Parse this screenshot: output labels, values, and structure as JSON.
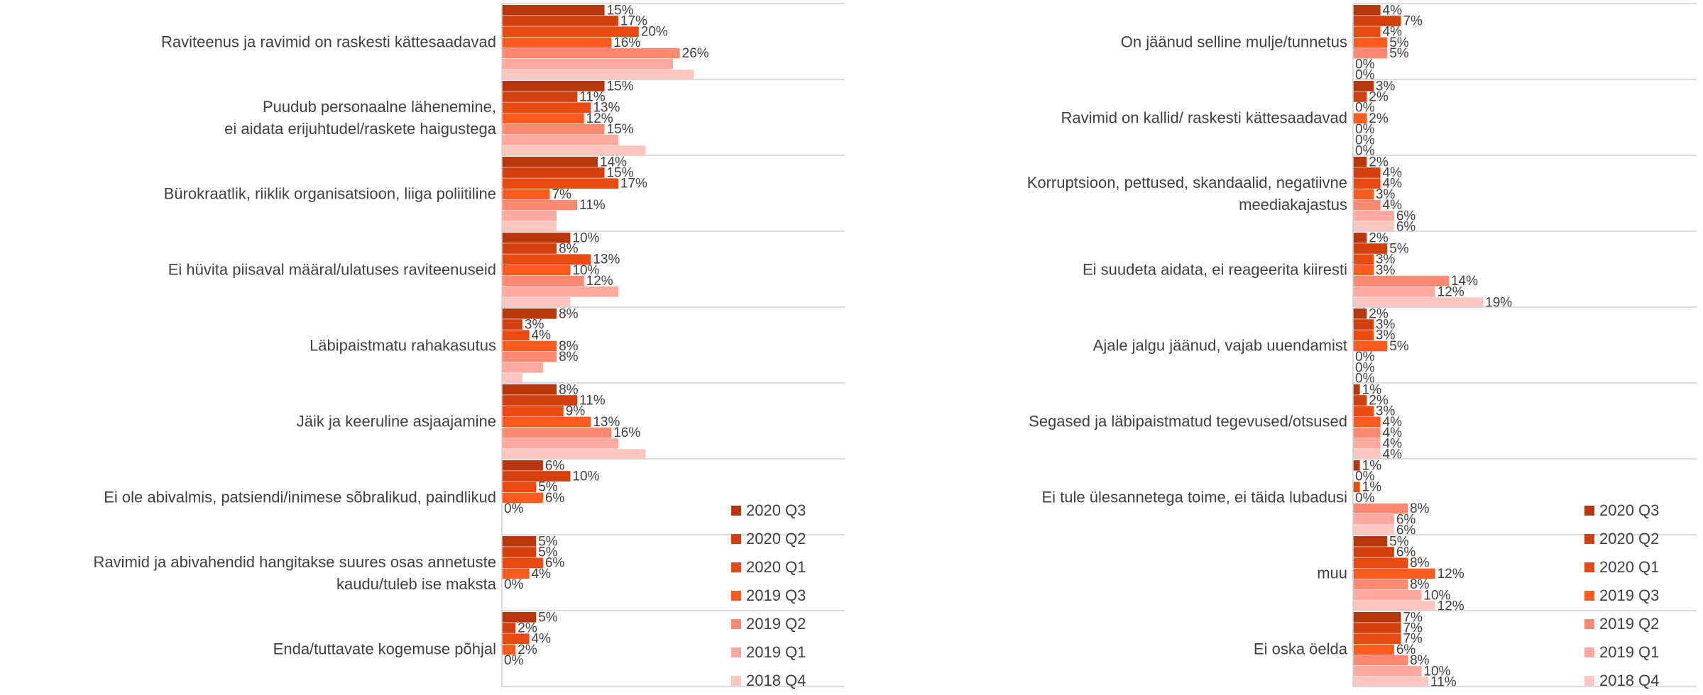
{
  "chart_data": [
    {
      "type": "bar",
      "categories": [
        "Raviteenus ja ravimid on raskesti kättesaadavad",
        "Puudub personaalne lähenemine,\nei aidata erijuhtudel/raskete haigustega",
        "Bürokraatlik, riiklik organisatsioon, liiga poliitiline",
        "Ei hüvita piisaval määral/ulatuses raviteenuseid",
        "Läbipaistmatu rahakasutus",
        "Jäik ja keeruline asjaajamine",
        "Ei ole abivalmis, patsiendi/inimese sõbralikud, paindlikud",
        "Ravimid ja abivahendid hangitakse suures osas annetuste\nkaudu/tuleb ise maksta",
        "Enda/tuttavate kogemuse põhjal"
      ],
      "series": [
        {
          "name": "2020 Q3",
          "color": "#b8360b",
          "values": [
            15,
            15,
            14,
            10,
            8,
            8,
            6,
            5,
            5
          ],
          "value_labels": [
            "15%",
            "15%",
            "14%",
            "10%",
            "8%",
            "8%",
            "6%",
            "5%",
            "5%"
          ]
        },
        {
          "name": "2020 Q2",
          "color": "#d2400f",
          "values": [
            17,
            11,
            15,
            8,
            3,
            11,
            10,
            5,
            2
          ],
          "value_labels": [
            "17%",
            "11%",
            "15%",
            "8%",
            "3%",
            "11%",
            "10%",
            "5%",
            "2%"
          ]
        },
        {
          "name": "2020 Q1",
          "color": "#e84a12",
          "values": [
            20,
            13,
            17,
            13,
            4,
            9,
            5,
            6,
            4
          ],
          "value_labels": [
            "20%",
            "13%",
            "17%",
            "13%",
            "4%",
            "9%",
            "5%",
            "6%",
            "4%"
          ]
        },
        {
          "name": "2019 Q3",
          "color": "#ff5b1e",
          "values": [
            16,
            12,
            7,
            10,
            8,
            13,
            6,
            4,
            2
          ],
          "value_labels": [
            "16%",
            "12%",
            "7%",
            "10%",
            "8%",
            "13%",
            "6%",
            "4%",
            "2%"
          ]
        },
        {
          "name": "2019 Q2",
          "color": "#ff8a74",
          "values": [
            26,
            15,
            11,
            12,
            8,
            16,
            0,
            0,
            0
          ],
          "value_labels": [
            "26%",
            "15%",
            "11%",
            "12%",
            "8%",
            "16%",
            "0%",
            "0%",
            "0%"
          ]
        },
        {
          "name": "2019 Q1",
          "color": "#ffa9a0",
          "values": [
            25,
            17,
            8,
            17,
            6,
            17,
            null,
            null,
            null
          ],
          "value_labels": [
            null,
            null,
            null,
            null,
            null,
            null,
            null,
            null,
            null
          ]
        },
        {
          "name": "2018 Q4",
          "color": "#ffc6c0",
          "values": [
            28,
            21,
            8,
            10,
            3,
            21,
            null,
            null,
            null
          ],
          "value_labels": [
            null,
            null,
            null,
            null,
            null,
            null,
            null,
            null,
            null
          ]
        }
      ]
    },
    {
      "type": "bar",
      "categories": [
        "On jäänud selline mulje/tunnetus",
        "Ravimid on kallid/ raskesti kättesaadavad",
        "Korruptsioon, pettused, skandaalid, negatiivne\nmeediakajastus",
        "Ei suudeta aidata, ei reageerita kiiresti",
        "Ajale jalgu jäänud, vajab uuendamist",
        "Segased ja läbipaistmatud tegevused/otsused",
        "Ei tule ülesannetega toime, ei täida lubadusi",
        "muu",
        "Ei oska öelda"
      ],
      "series": [
        {
          "name": "2020 Q3",
          "color": "#b8360b",
          "values": [
            4,
            3,
            2,
            2,
            2,
            1,
            1,
            5,
            7
          ],
          "value_labels": [
            "4%",
            "3%",
            "2%",
            "2%",
            "2%",
            "1%",
            "1%",
            "5%",
            "7%"
          ]
        },
        {
          "name": "2020 Q2",
          "color": "#d2400f",
          "values": [
            7,
            2,
            4,
            5,
            3,
            2,
            0,
            6,
            7
          ],
          "value_labels": [
            "7%",
            "2%",
            "4%",
            "5%",
            "3%",
            "2%",
            "0%",
            "6%",
            "7%"
          ]
        },
        {
          "name": "2020 Q1",
          "color": "#e84a12",
          "values": [
            4,
            0,
            4,
            3,
            3,
            3,
            1,
            8,
            7
          ],
          "value_labels": [
            "4%",
            "0%",
            "4%",
            "3%",
            "3%",
            "3%",
            "1%",
            "8%",
            "7%"
          ]
        },
        {
          "name": "2019 Q3",
          "color": "#ff5b1e",
          "values": [
            5,
            2,
            3,
            3,
            5,
            4,
            0,
            12,
            6
          ],
          "value_labels": [
            "5%",
            "2%",
            "3%",
            "3%",
            "5%",
            "4%",
            "0%",
            "12%",
            "6%"
          ]
        },
        {
          "name": "2019 Q2",
          "color": "#ff8a74",
          "values": [
            5,
            0,
            4,
            14,
            0,
            4,
            8,
            8,
            8
          ],
          "value_labels": [
            "5%",
            "0%",
            "4%",
            "14%",
            "0%",
            "4%",
            "8%",
            "8%",
            "8%"
          ]
        },
        {
          "name": "2019 Q1",
          "color": "#ffa9a0",
          "values": [
            0,
            0,
            6,
            12,
            0,
            4,
            6,
            10,
            10
          ],
          "value_labels": [
            "0%",
            "0%",
            "6%",
            "12%",
            "0%",
            "4%",
            "6%",
            "10%",
            "10%"
          ]
        },
        {
          "name": "2018 Q4",
          "color": "#ffc6c0",
          "values": [
            0,
            0,
            6,
            19,
            0,
            4,
            6,
            12,
            11
          ],
          "value_labels": [
            "0%",
            "0%",
            "6%",
            "19%",
            "0%",
            "4%",
            "6%",
            "12%",
            "11%"
          ]
        }
      ]
    }
  ]
}
